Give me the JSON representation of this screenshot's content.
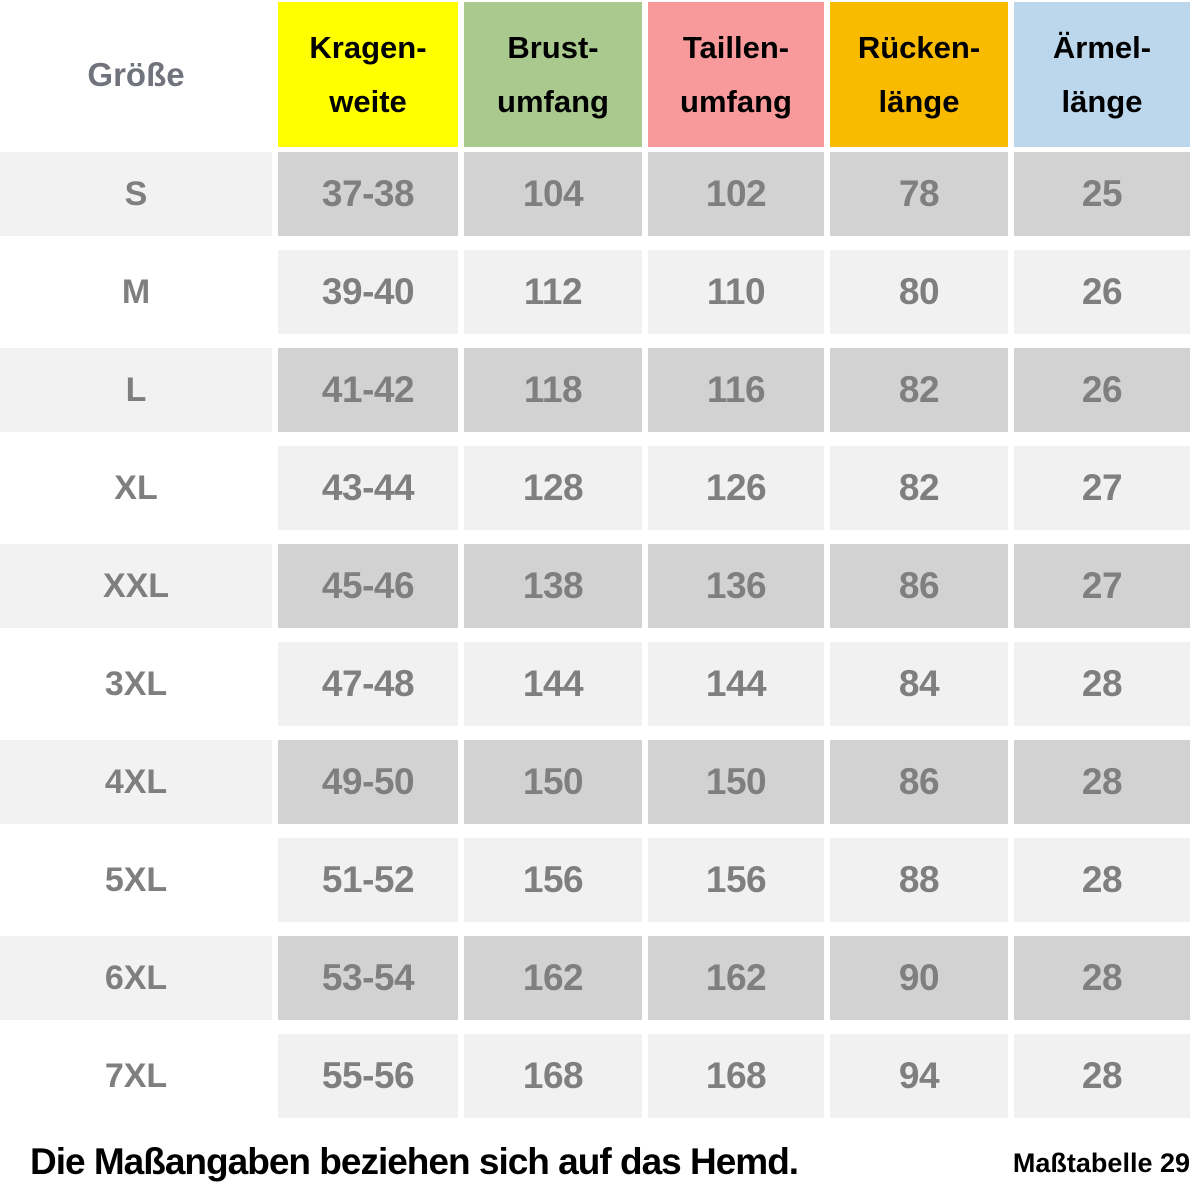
{
  "table": {
    "size_header": "Größe",
    "columns": [
      {
        "line1": "Kragen-",
        "line2": "weite",
        "bg": "#FFFF00"
      },
      {
        "line1": "Brust-",
        "line2": "umfang",
        "bg": "#A9C98F"
      },
      {
        "line1": "Taillen-",
        "line2": "umfang",
        "bg": "#F89A9B"
      },
      {
        "line1": "Rücken-",
        "line2": "länge",
        "bg": "#F9BB00"
      },
      {
        "line1": "Ärmel-",
        "line2": "länge",
        "bg": "#BCD6EC"
      }
    ],
    "rows": [
      {
        "size": "S",
        "values": [
          "37-38",
          "104",
          "102",
          "78",
          "25"
        ]
      },
      {
        "size": "M",
        "values": [
          "39-40",
          "112",
          "110",
          "80",
          "26"
        ]
      },
      {
        "size": "L",
        "values": [
          "41-42",
          "118",
          "116",
          "82",
          "26"
        ]
      },
      {
        "size": "XL",
        "values": [
          "43-44",
          "128",
          "126",
          "82",
          "27"
        ]
      },
      {
        "size": "XXL",
        "values": [
          "45-46",
          "138",
          "136",
          "86",
          "27"
        ]
      },
      {
        "size": "3XL",
        "values": [
          "47-48",
          "144",
          "144",
          "84",
          "28"
        ]
      },
      {
        "size": "4XL",
        "values": [
          "49-50",
          "150",
          "150",
          "86",
          "28"
        ]
      },
      {
        "size": "5XL",
        "values": [
          "51-52",
          "156",
          "156",
          "88",
          "28"
        ]
      },
      {
        "size": "6XL",
        "values": [
          "53-54",
          "162",
          "162",
          "90",
          "28"
        ]
      },
      {
        "size": "7XL",
        "values": [
          "55-56",
          "168",
          "168",
          "94",
          "28"
        ]
      }
    ]
  },
  "footer": {
    "note": "Die Maßangaben beziehen sich auf das Hemd.",
    "label": "Maßtabelle 29"
  },
  "colors": {
    "header_yellow": "#FFFF00",
    "header_green": "#A9C98F",
    "header_pink": "#F89A9B",
    "header_orange": "#F9BB00",
    "header_blue": "#BCD6EC",
    "row_odd_size_bg": "#F2F2F2",
    "row_odd_data_bg": "#D2D2D2",
    "row_even_size_bg": "#FFFFFF",
    "row_even_data_bg": "#F1F1F1",
    "value_text_gray": "#7F7F7F",
    "size_header_text": "#71737D"
  },
  "chart_data": {
    "type": "table",
    "title": "Maßtabelle 29",
    "note": "Die Maßangaben beziehen sich auf das Hemd.",
    "columns": [
      "Größe",
      "Kragenweite",
      "Brustumfang",
      "Taillenumfang",
      "Rückenlänge",
      "Ärmellänge"
    ],
    "rows": [
      [
        "S",
        "37-38",
        104,
        102,
        78,
        25
      ],
      [
        "M",
        "39-40",
        112,
        110,
        80,
        26
      ],
      [
        "L",
        "41-42",
        118,
        116,
        82,
        26
      ],
      [
        "XL",
        "43-44",
        128,
        126,
        82,
        27
      ],
      [
        "XXL",
        "45-46",
        138,
        136,
        86,
        27
      ],
      [
        "3XL",
        "47-48",
        144,
        144,
        84,
        28
      ],
      [
        "4XL",
        "49-50",
        150,
        150,
        86,
        28
      ],
      [
        "5XL",
        "51-52",
        156,
        156,
        88,
        28
      ],
      [
        "6XL",
        "53-54",
        162,
        162,
        90,
        28
      ],
      [
        "7XL",
        "55-56",
        168,
        168,
        94,
        28
      ]
    ]
  }
}
